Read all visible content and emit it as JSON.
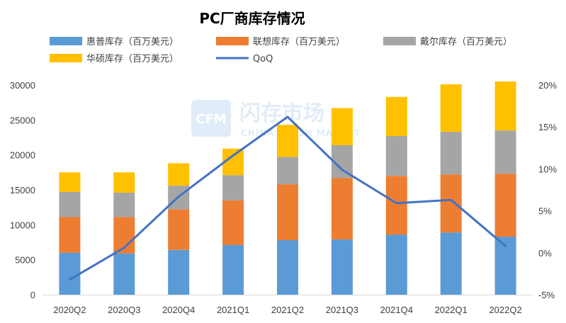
{
  "chart_data": {
    "type": "bar",
    "stacked": true,
    "title": "PC厂商库存情况",
    "categories": [
      "2020Q2",
      "2020Q3",
      "2020Q4",
      "2021Q1",
      "2021Q2",
      "2021Q3",
      "2021Q4",
      "2022Q1",
      "2022Q2"
    ],
    "series": [
      {
        "name": "惠普库存（百万美元）",
        "color": "#5b9bd5",
        "values": [
          6000,
          5900,
          6400,
          7100,
          7800,
          7900,
          8600,
          8900,
          8300
        ]
      },
      {
        "name": "联想库存（百万美元）",
        "color": "#ed7d31",
        "values": [
          5100,
          5200,
          5800,
          6400,
          8000,
          8800,
          8400,
          8300,
          9000
        ]
      },
      {
        "name": "戴尔库存（百万美元）",
        "color": "#a5a5a5",
        "values": [
          3600,
          3500,
          3400,
          3600,
          3900,
          4700,
          5700,
          6100,
          6200
        ]
      },
      {
        "name": "华硕库存（百万美元）",
        "color": "#ffc000",
        "values": [
          2800,
          2900,
          3200,
          3800,
          4600,
          5300,
          5600,
          6800,
          7000
        ]
      }
    ],
    "line": {
      "name": "QoQ",
      "color": "#4472c4",
      "axis": "right",
      "values": [
        -3.2,
        0.6,
        6.7,
        11.6,
        16.2,
        9.9,
        5.9,
        6.3,
        0.8
      ]
    },
    "y_left": {
      "min": 0,
      "max": 30000,
      "ticks": [
        "0",
        "5000",
        "10000",
        "15000",
        "20000",
        "25000",
        "30000"
      ]
    },
    "y_right": {
      "min": -5,
      "max": 20,
      "ticks": [
        "-5%",
        "0%",
        "5%",
        "10%",
        "15%",
        "20%"
      ]
    },
    "gridlines": false,
    "legend_position": "top"
  },
  "watermark": {
    "logo": "CFM",
    "text_cn": "闪存市场",
    "text_en": "CHINA FLASH MARKET"
  }
}
